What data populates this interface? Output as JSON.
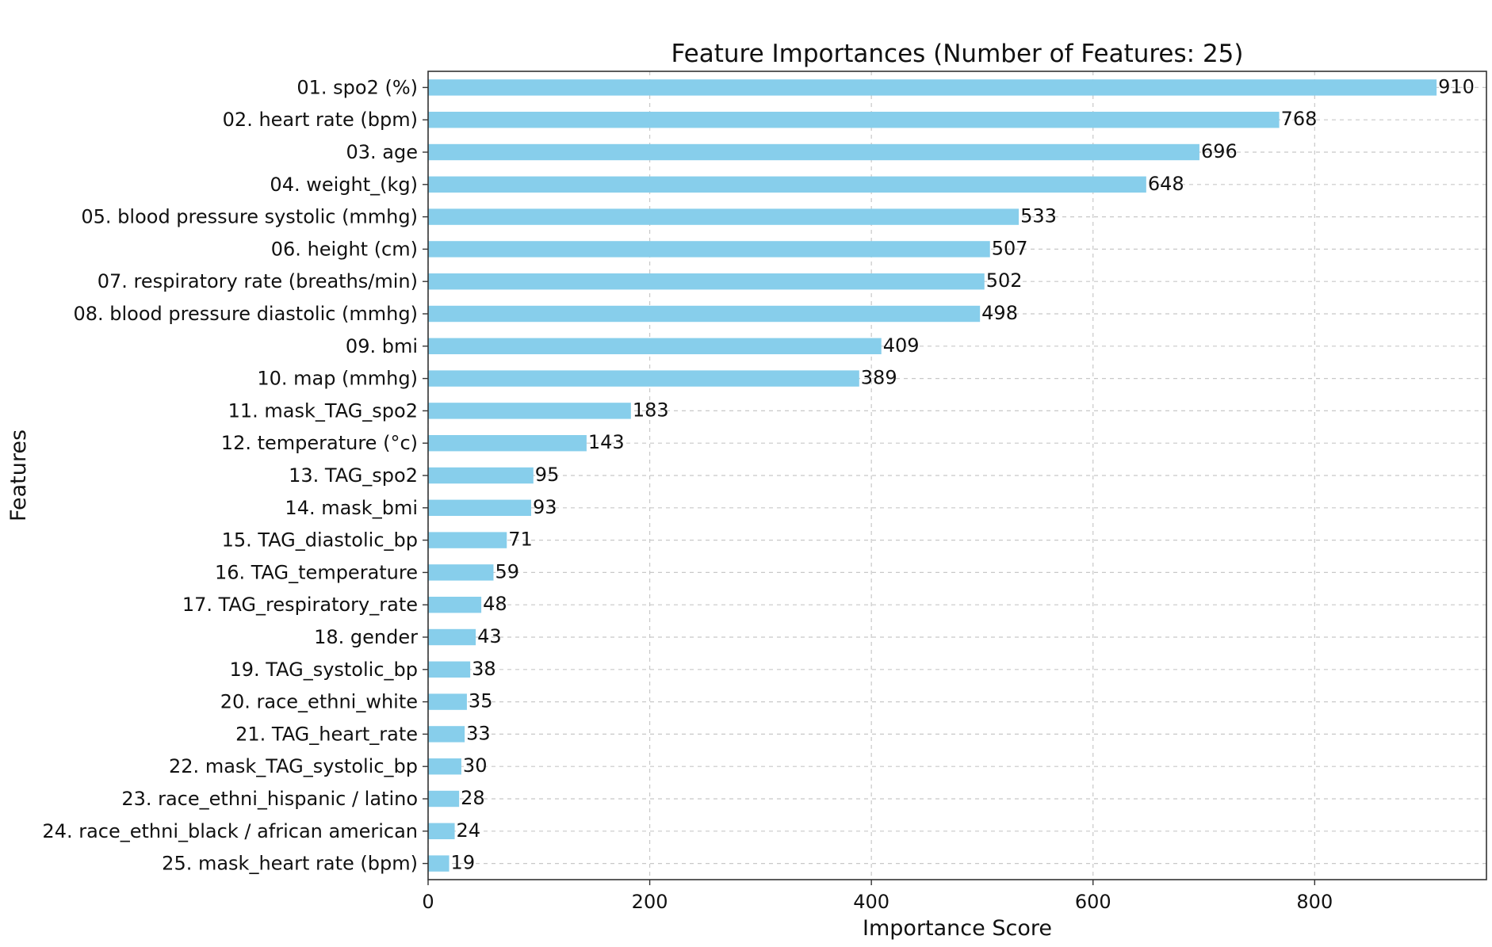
{
  "chart_data": {
    "type": "bar",
    "orientation": "horizontal",
    "title": "Feature Importances (Number of Features: 25)",
    "xlabel": "Importance Score",
    "ylabel": "Features",
    "xlim": [
      0,
      955
    ],
    "xticks": [
      0,
      200,
      400,
      600,
      800
    ],
    "grid": true,
    "bar_color": "#87CEEB",
    "categories": [
      "01. spo2 (%)",
      "02. heart rate (bpm)",
      "03. age",
      "04. weight_(kg)",
      "05. blood pressure systolic (mmhg)",
      "06. height (cm)",
      "07. respiratory rate (breaths/min)",
      "08. blood pressure diastolic (mmhg)",
      "09. bmi",
      "10. map (mmhg)",
      "11. mask_TAG_spo2",
      "12. temperature (°c)",
      "13. TAG_spo2",
      "14. mask_bmi",
      "15. TAG_diastolic_bp",
      "16. TAG_temperature",
      "17. TAG_respiratory_rate",
      "18. gender",
      "19. TAG_systolic_bp",
      "20. race_ethni_white",
      "21. TAG_heart_rate",
      "22. mask_TAG_systolic_bp",
      "23. race_ethni_hispanic / latino",
      "24. race_ethni_black / african american",
      "25. mask_heart rate (bpm)"
    ],
    "values": [
      910,
      768,
      696,
      648,
      533,
      507,
      502,
      498,
      409,
      389,
      183,
      143,
      95,
      93,
      71,
      59,
      48,
      43,
      38,
      35,
      33,
      30,
      28,
      24,
      19
    ]
  }
}
